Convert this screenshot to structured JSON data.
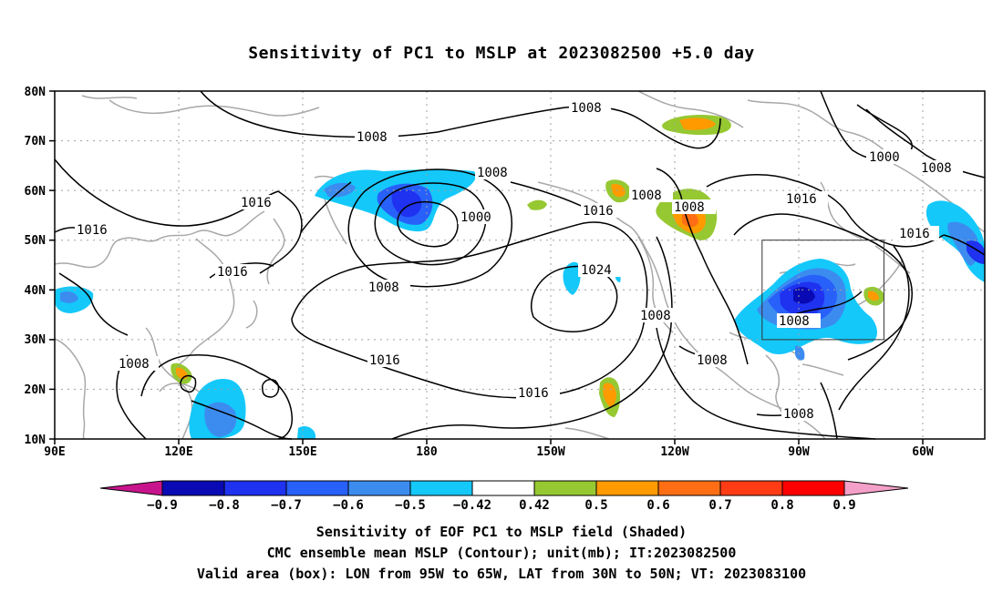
{
  "title": "Sensitivity of PC1 to MSLP at 2023082500 +5.0 day",
  "axes": {
    "lat_labels": [
      "80N",
      "70N",
      "60N",
      "50N",
      "40N",
      "30N",
      "20N",
      "10N"
    ],
    "lon_labels": [
      "90E",
      "120E",
      "150E",
      "180",
      "150W",
      "120W",
      "90W",
      "60W"
    ]
  },
  "contour_labels": [
    "1008",
    "1008",
    "1008",
    "1000",
    "1008",
    "1016",
    "1016",
    "1008",
    "1016",
    "1016",
    "1000",
    "1008",
    "1016",
    "1024",
    "1008",
    "1008",
    "1008",
    "1016",
    "1016",
    "1008",
    "1016",
    "1008",
    "1008"
  ],
  "colorbar": {
    "labels": [
      "−0.9",
      "−0.8",
      "−0.7",
      "−0.6",
      "−0.5",
      "−0.42",
      "0.42",
      "0.5",
      "0.6",
      "0.7",
      "0.8",
      "0.9"
    ],
    "colors": [
      "#c8148c",
      "#0a0ab4",
      "#1e32f0",
      "#2860fa",
      "#3c8cf0",
      "#14c8fa",
      "#ffffff",
      "#96c832",
      "#ff9b00",
      "#ff6e14",
      "#ff3c14",
      "#ff0000",
      "#f5a0c8"
    ]
  },
  "validation_box": {
    "lon_from": "95W",
    "lon_to": "65W",
    "lat_from": "30N",
    "lat_to": "50N"
  },
  "captions": {
    "line1": "Sensitivity of EOF PC1 to MSLP field (Shaded)",
    "line2": "CMC ensemble mean MSLP (Contour); unit(mb); IT:2023082500",
    "line3": "Valid area (box): LON from 95W to 65W, LAT from 30N to 50N; VT: 2023083100"
  }
}
